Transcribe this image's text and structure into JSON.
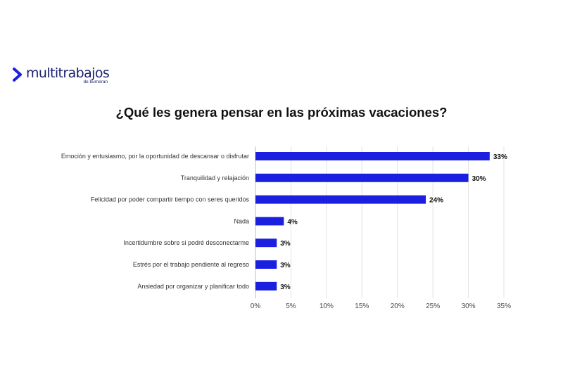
{
  "brand": {
    "name": "multitrabajos",
    "subtitle": "de bumeran",
    "color": "#1a1f6e",
    "accent": "#1a1fe0"
  },
  "chart_data": {
    "type": "bar",
    "orientation": "horizontal",
    "title": "¿Qué les genera pensar en las próximas vacaciones?",
    "categories": [
      "Emoción y entusiasmo, por la oportunidad de descansar o disfrutar",
      "Tranquilidad y relajación",
      "Felicidad por poder compartir tiempo con seres queridos",
      "Nada",
      "Incertidumbre sobre si podré desconectarme",
      "Estrés por el trabajo pendiente al regreso",
      "Ansiedad por organizar y planificar todo"
    ],
    "values": [
      33,
      30,
      24,
      4,
      3,
      3,
      3
    ],
    "value_labels": [
      "33%",
      "30%",
      "24%",
      "4%",
      "3%",
      "3%",
      "3%"
    ],
    "xlim": [
      0,
      35
    ],
    "ticks": [
      0,
      5,
      10,
      15,
      20,
      25,
      30,
      35
    ],
    "tick_labels": [
      "0%",
      "5%",
      "10%",
      "15%",
      "20%",
      "25%",
      "30%",
      "35%"
    ],
    "bar_color": "#1a1fe0",
    "grid": true
  }
}
